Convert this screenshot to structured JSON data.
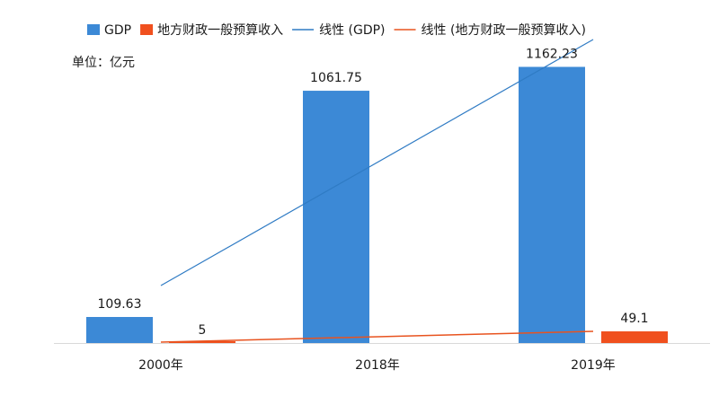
{
  "chart_data": {
    "type": "bar",
    "unit_label": "单位：亿元",
    "categories": [
      "2000年",
      "2018年",
      "2019年"
    ],
    "series": [
      {
        "name": "GDP",
        "values": [
          109.63,
          1061.75,
          1162.23
        ],
        "color": "#3c89d6"
      },
      {
        "name": "地方财政一般预算收入",
        "values": [
          5,
          null,
          49.1
        ],
        "color": "#f0501e"
      }
    ],
    "data_labels": [
      {
        "series": 0,
        "index": 0,
        "text": "109.63"
      },
      {
        "series": 0,
        "index": 1,
        "text": "1061.75"
      },
      {
        "series": 0,
        "index": 2,
        "text": "1162.23"
      },
      {
        "series": 1,
        "index": 0,
        "text": "5"
      },
      {
        "series": 1,
        "index": 2,
        "text": "49.1"
      }
    ],
    "trendlines": [
      {
        "name": "线性 (GDP)",
        "of_series": 0,
        "color": "#2f7bc4"
      },
      {
        "name": "线性 (地方财政一般预算收入)",
        "of_series": 1,
        "color": "#e8531f"
      }
    ],
    "ylim": [
      0,
      1200
    ],
    "legend_position": "top",
    "grid": false
  }
}
